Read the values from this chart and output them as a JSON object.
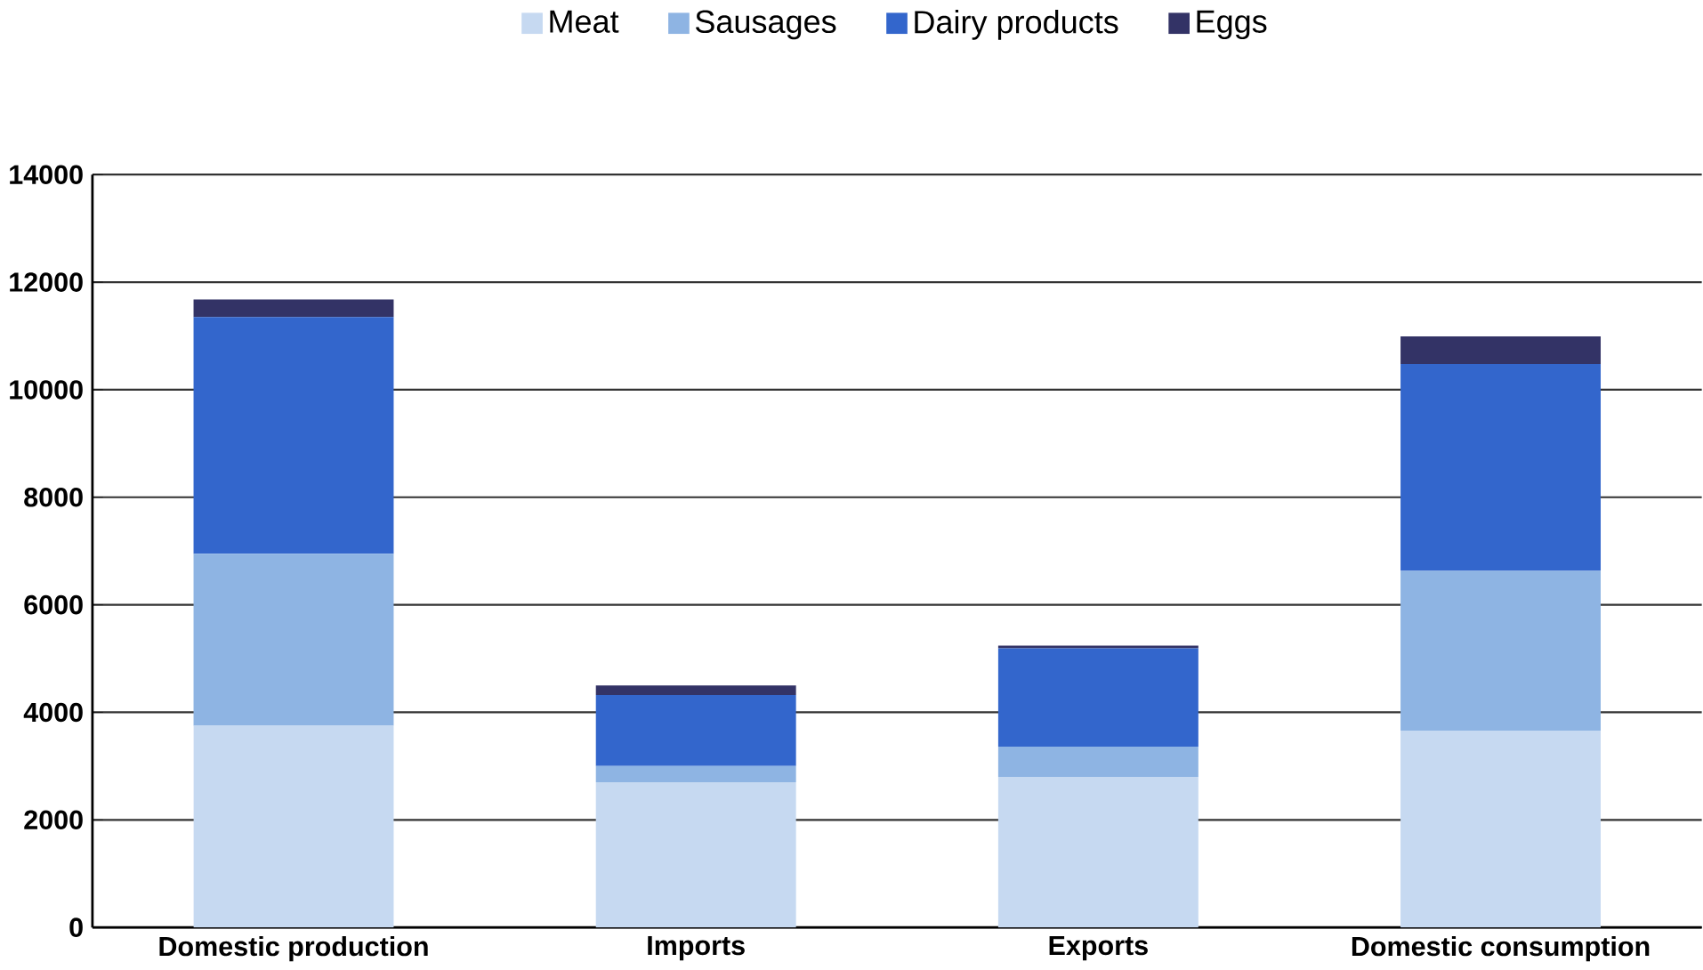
{
  "chart_data": {
    "type": "bar",
    "stacked": true,
    "categories": [
      "Domestic production",
      "Imports",
      "Exports",
      "Domestic consumption"
    ],
    "series": [
      {
        "name": "Meat",
        "color": "#c6d9f1",
        "values": [
          3750,
          2700,
          2800,
          3650
        ]
      },
      {
        "name": "Sausages",
        "color": "#8eb4e3",
        "values": [
          3200,
          300,
          560,
          2980
        ]
      },
      {
        "name": "Dairy products",
        "color": "#3366cc",
        "values": [
          4400,
          1320,
          1830,
          3850
        ]
      },
      {
        "name": "Eggs",
        "color": "#333366",
        "values": [
          330,
          180,
          50,
          510
        ]
      }
    ],
    "ylim": [
      0,
      14000
    ],
    "yticks": [
      0,
      2000,
      4000,
      6000,
      8000,
      10000,
      12000,
      14000
    ],
    "grid": "y",
    "legend": "top"
  }
}
